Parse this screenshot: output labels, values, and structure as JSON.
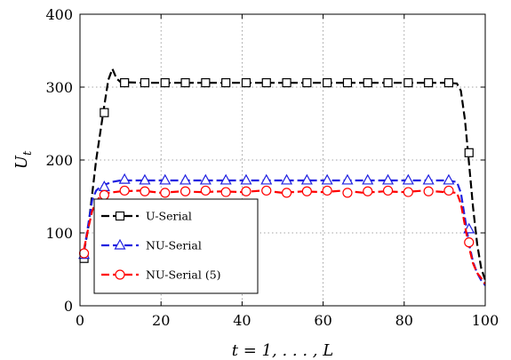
{
  "chart_data": {
    "type": "line",
    "xlabel": "t = 1, . . . , L",
    "ylabel": "U_t",
    "xlim": [
      0,
      100
    ],
    "ylim": [
      0,
      400
    ],
    "xticks": [
      0,
      20,
      40,
      60,
      80,
      100
    ],
    "yticks": [
      0,
      100,
      200,
      300,
      400
    ],
    "grid": "dotted",
    "legend_position": "lower-left",
    "series": [
      {
        "name": "U-Serial",
        "color": "#000000",
        "dash": "long-dash",
        "marker": "square",
        "line": [
          [
            1,
            75
          ],
          [
            2,
            105
          ],
          [
            4,
            200
          ],
          [
            6,
            275
          ],
          [
            7,
            310
          ],
          [
            8,
            325
          ],
          [
            9,
            312
          ],
          [
            10,
            307
          ],
          [
            15,
            306
          ],
          [
            20,
            306
          ],
          [
            30,
            306
          ],
          [
            40,
            306
          ],
          [
            50,
            306
          ],
          [
            60,
            306
          ],
          [
            70,
            306
          ],
          [
            80,
            306
          ],
          [
            90,
            306
          ],
          [
            93,
            305
          ],
          [
            94,
            295
          ],
          [
            95,
            255
          ],
          [
            96,
            195
          ],
          [
            97,
            135
          ],
          [
            98,
            85
          ],
          [
            99,
            52
          ],
          [
            100,
            35
          ]
        ],
        "markers": [
          [
            1,
            65
          ],
          [
            6,
            265
          ],
          [
            11,
            306
          ],
          [
            16,
            306
          ],
          [
            21,
            306
          ],
          [
            26,
            306
          ],
          [
            31,
            306
          ],
          [
            36,
            306
          ],
          [
            41,
            306
          ],
          [
            46,
            306
          ],
          [
            51,
            306
          ],
          [
            56,
            306
          ],
          [
            61,
            306
          ],
          [
            66,
            306
          ],
          [
            71,
            306
          ],
          [
            76,
            306
          ],
          [
            81,
            306
          ],
          [
            86,
            306
          ],
          [
            91,
            306
          ],
          [
            96,
            210
          ]
        ]
      },
      {
        "name": "NU-Serial",
        "color": "#1f1fe0",
        "dash": "long-dash",
        "marker": "triangle",
        "line": [
          [
            1,
            75
          ],
          [
            2,
            110
          ],
          [
            3,
            145
          ],
          [
            4,
            158
          ],
          [
            5,
            163
          ],
          [
            6,
            166
          ],
          [
            8,
            170
          ],
          [
            10,
            172
          ],
          [
            20,
            172
          ],
          [
            30,
            172
          ],
          [
            40,
            172
          ],
          [
            50,
            172
          ],
          [
            60,
            172
          ],
          [
            70,
            172
          ],
          [
            80,
            172
          ],
          [
            90,
            172
          ],
          [
            93,
            170
          ],
          [
            94,
            155
          ],
          [
            95,
            120
          ],
          [
            96,
            85
          ],
          [
            97,
            60
          ],
          [
            98,
            45
          ],
          [
            99,
            35
          ],
          [
            100,
            28
          ]
        ],
        "markers": [
          [
            1,
            70
          ],
          [
            6,
            163
          ],
          [
            11,
            173
          ],
          [
            16,
            172
          ],
          [
            21,
            172
          ],
          [
            26,
            172
          ],
          [
            31,
            172
          ],
          [
            36,
            172
          ],
          [
            41,
            172
          ],
          [
            46,
            172
          ],
          [
            51,
            172
          ],
          [
            56,
            172
          ],
          [
            61,
            172
          ],
          [
            66,
            172
          ],
          [
            71,
            172
          ],
          [
            76,
            172
          ],
          [
            81,
            172
          ],
          [
            86,
            172
          ],
          [
            91,
            172
          ],
          [
            96,
            105
          ]
        ]
      },
      {
        "name": "NU-Serial (5)",
        "color": "#ff0000",
        "dash": "long-dash",
        "marker": "circle",
        "line": [
          [
            1,
            78
          ],
          [
            2,
            105
          ],
          [
            3,
            130
          ],
          [
            4,
            143
          ],
          [
            5,
            150
          ],
          [
            7,
            155
          ],
          [
            10,
            157
          ],
          [
            15,
            158
          ],
          [
            20,
            155
          ],
          [
            25,
            157
          ],
          [
            30,
            156
          ],
          [
            35,
            157
          ],
          [
            40,
            156
          ],
          [
            45,
            158
          ],
          [
            50,
            155
          ],
          [
            55,
            157
          ],
          [
            60,
            156
          ],
          [
            65,
            158
          ],
          [
            70,
            155
          ],
          [
            75,
            157
          ],
          [
            80,
            156
          ],
          [
            85,
            158
          ],
          [
            90,
            156
          ],
          [
            93,
            155
          ],
          [
            94,
            140
          ],
          [
            95,
            110
          ],
          [
            96,
            80
          ],
          [
            97,
            58
          ],
          [
            98,
            45
          ],
          [
            99,
            38
          ],
          [
            100,
            30
          ]
        ],
        "markers": [
          [
            1,
            72
          ],
          [
            6,
            152
          ],
          [
            11,
            158
          ],
          [
            16,
            157
          ],
          [
            21,
            155
          ],
          [
            26,
            157
          ],
          [
            31,
            158
          ],
          [
            36,
            156
          ],
          [
            41,
            157
          ],
          [
            46,
            158
          ],
          [
            51,
            155
          ],
          [
            56,
            157
          ],
          [
            61,
            158
          ],
          [
            66,
            155
          ],
          [
            71,
            157
          ],
          [
            76,
            158
          ],
          [
            81,
            156
          ],
          [
            86,
            157
          ],
          [
            91,
            158
          ],
          [
            96,
            87
          ]
        ]
      }
    ]
  }
}
